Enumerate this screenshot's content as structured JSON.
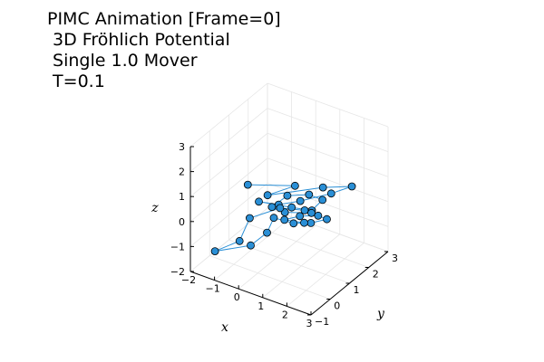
{
  "title_lines": [
    "PIMC Animation [Frame=0]",
    " 3D Fröhlich Potential",
    " Single 1.0 Mover",
    " T=0.1"
  ],
  "chart_data": {
    "type": "line3d-scatter",
    "xlabel": "x",
    "ylabel": "y",
    "zlabel": "z",
    "xlim": [
      -2,
      3
    ],
    "ylim": [
      -1,
      3
    ],
    "zlim": [
      -2,
      3
    ],
    "x_ticks": [
      "−2",
      "−1",
      "0",
      "1",
      "2",
      "3"
    ],
    "y_ticks": [
      "−1",
      "0",
      "1",
      "2",
      "3"
    ],
    "z_ticks": [
      "−2",
      "−1",
      "0",
      "1",
      "2",
      "3"
    ],
    "grid": true,
    "series_color": "#2a8fd6",
    "marker_stroke": "#000000",
    "points": [
      {
        "x": -0.5,
        "y": 0.1,
        "z": 1.3
      },
      {
        "x": 0.9,
        "y": 0.8,
        "z": 1.3
      },
      {
        "x": 0.0,
        "y": 0.5,
        "z": 0.8
      },
      {
        "x": 1.5,
        "y": 1.5,
        "z": 1.0
      },
      {
        "x": 2.3,
        "y": 2.0,
        "z": 1.0
      },
      {
        "x": 1.6,
        "y": 1.8,
        "z": 0.6
      },
      {
        "x": 0.8,
        "y": 1.2,
        "z": 0.4
      },
      {
        "x": 0.3,
        "y": 0.7,
        "z": 0.4
      },
      {
        "x": -0.2,
        "y": 0.3,
        "z": 0.6
      },
      {
        "x": 0.6,
        "y": 1.0,
        "z": 0.2
      },
      {
        "x": 1.2,
        "y": 1.3,
        "z": 0.1
      },
      {
        "x": 1.4,
        "y": 1.6,
        "z": 0.4
      },
      {
        "x": 1.0,
        "y": 1.4,
        "z": 0.6
      },
      {
        "x": 0.5,
        "y": 0.9,
        "z": 0.7
      },
      {
        "x": 0.1,
        "y": 0.6,
        "z": 0.3
      },
      {
        "x": 0.4,
        "y": 0.9,
        "z": 0.0
      },
      {
        "x": 1.1,
        "y": 1.4,
        "z": -0.1
      },
      {
        "x": 1.5,
        "y": 1.7,
        "z": -0.4
      },
      {
        "x": 1.0,
        "y": 1.5,
        "z": -0.6
      },
      {
        "x": 0.6,
        "y": 1.1,
        "z": -0.5
      },
      {
        "x": 0.1,
        "y": 0.7,
        "z": -0.2
      },
      {
        "x": -0.1,
        "y": 0.6,
        "z": -0.8
      },
      {
        "x": -0.3,
        "y": 0.0,
        "z": -1.0
      },
      {
        "x": -1.3,
        "y": -0.6,
        "z": -1.2
      },
      {
        "x": -0.6,
        "y": -0.2,
        "z": -0.8
      },
      {
        "x": -0.5,
        "y": 0.2,
        "z": -0.1
      },
      {
        "x": 0.2,
        "y": 0.9,
        "z": 0.1
      },
      {
        "x": 0.9,
        "y": 1.3,
        "z": 0.0
      },
      {
        "x": 1.3,
        "y": 1.5,
        "z": -0.2
      },
      {
        "x": 0.7,
        "y": 1.3,
        "z": -0.3
      },
      {
        "x": 0.3,
        "y": 1.0,
        "z": -0.4
      },
      {
        "x": 0.8,
        "y": 1.4,
        "z": -0.6
      }
    ]
  }
}
